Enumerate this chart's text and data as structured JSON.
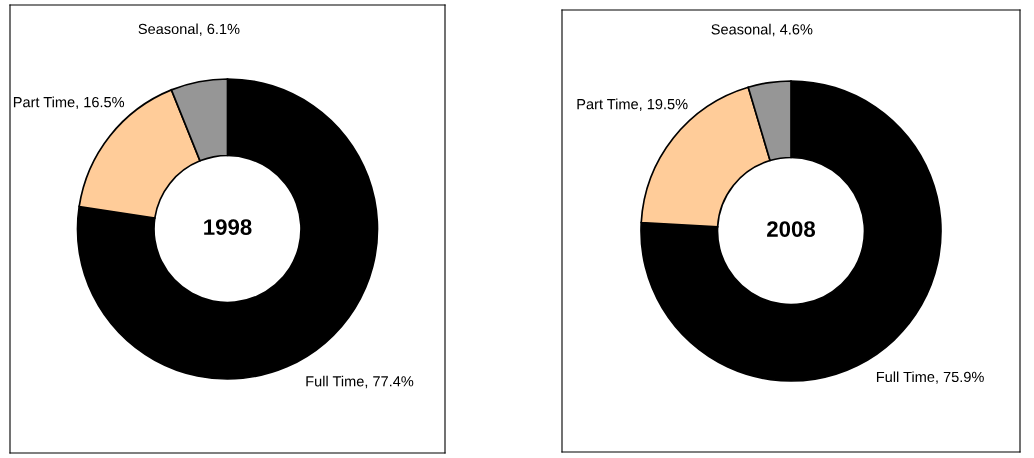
{
  "chart_data": [
    {
      "type": "donut",
      "title": "1998",
      "categories": [
        "Full Time",
        "Part Time",
        "Seasonal"
      ],
      "values": [
        77.4,
        16.5,
        6.1
      ],
      "value_labels": [
        "77.4%",
        "16.5%",
        "6.1%"
      ],
      "colors": [
        "#000000",
        "#ffcc99",
        "#969696"
      ],
      "legend": false
    },
    {
      "type": "donut",
      "title": "2008",
      "categories": [
        "Full Time",
        "Part Time",
        "Seasonal"
      ],
      "values": [
        75.9,
        19.5,
        4.6
      ],
      "value_labels": [
        "75.9%",
        "19.5%",
        "4.6%"
      ],
      "colors": [
        "#000000",
        "#ffcc99",
        "#969696"
      ],
      "legend": false
    }
  ]
}
